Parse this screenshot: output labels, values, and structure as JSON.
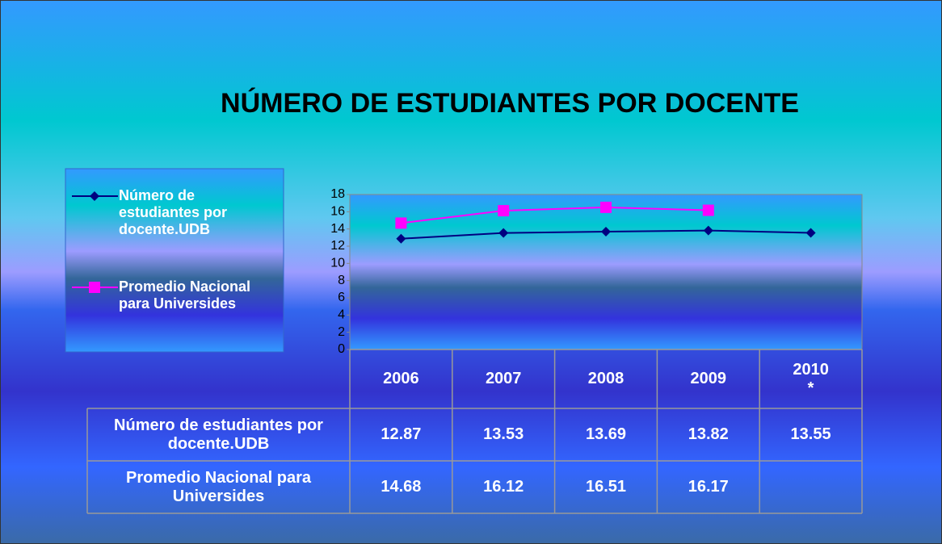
{
  "chart_data": {
    "type": "line",
    "title": "NÚMERO DE ESTUDIANTES POR DOCENTE",
    "categories": [
      "2006",
      "2007",
      "2008",
      "2009",
      "2010\n*"
    ],
    "series": [
      {
        "name": "Número de estudiantes por docente.UDB",
        "color": "#000080",
        "marker": "diamond",
        "values": [
          12.87,
          13.53,
          13.69,
          13.82,
          13.55
        ]
      },
      {
        "name": "Promedio Nacional para Universides",
        "color": "#ff00ff",
        "marker": "square",
        "values": [
          14.68,
          16.12,
          16.51,
          16.17,
          null
        ]
      }
    ],
    "ylim": [
      0,
      18
    ],
    "yticks": [
      0,
      2,
      4,
      6,
      8,
      10,
      12,
      14,
      16,
      18
    ],
    "legend": "left",
    "data_table": true
  }
}
